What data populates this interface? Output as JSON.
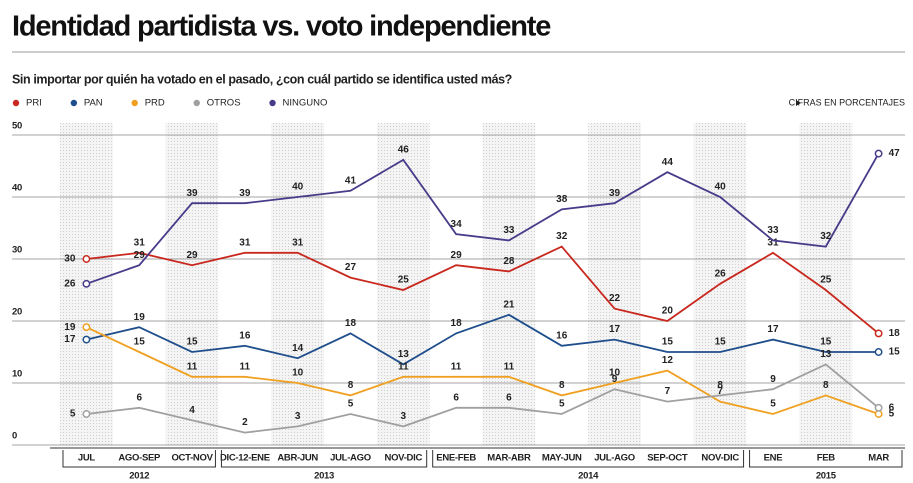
{
  "chart_data": {
    "type": "line",
    "title": "Identidad partidista vs. voto independiente",
    "subtitle": "Sin importar por quién ha votado en el pasado, ¿con cuál partido se identifica usted más?",
    "note": "CIFRAS EN PORCENTAJES",
    "categories": [
      "JUL",
      "AGO-SEP",
      "OCT-NOV",
      "DIC-12-ENE",
      "ABR-JUN",
      "JUL-AGO",
      "NOV-DIC",
      "ENE-FEB",
      "MAR-ABR",
      "MAY-JUN",
      "JUL-AGO",
      "SEP-OCT",
      "NOV-DIC",
      "ENE",
      "FEB",
      "MAR"
    ],
    "year_groups": [
      {
        "label": "2012",
        "count": 3
      },
      {
        "label": "2013",
        "count": 4
      },
      {
        "label": "2014",
        "count": 6
      },
      {
        "label": "2015",
        "count": 3
      }
    ],
    "series": [
      {
        "name": "PRI",
        "color": "#c8281e",
        "values": [
          30,
          31,
          29,
          31,
          31,
          27,
          25,
          29,
          28,
          32,
          22,
          20,
          26,
          31,
          25,
          18
        ]
      },
      {
        "name": "PAN",
        "color": "#1f4e8c",
        "values": [
          17,
          19,
          15,
          16,
          14,
          18,
          13,
          18,
          21,
          16,
          17,
          15,
          15,
          17,
          15,
          15
        ]
      },
      {
        "name": "PRD",
        "color": "#f0a020",
        "values": [
          19,
          15,
          11,
          11,
          10,
          8,
          11,
          11,
          11,
          8,
          10,
          12,
          7,
          5,
          8,
          5
        ]
      },
      {
        "name": "OTROS",
        "color": "#a0a0a0",
        "values": [
          5,
          6,
          4,
          2,
          3,
          5,
          3,
          6,
          6,
          5,
          9,
          7,
          8,
          9,
          13,
          6
        ]
      },
      {
        "name": "NINGUNO",
        "color": "#4a3a8a",
        "values": [
          26,
          29,
          39,
          39,
          40,
          41,
          46,
          34,
          33,
          38,
          39,
          44,
          40,
          33,
          32,
          47
        ]
      }
    ],
    "ylim": [
      0,
      50
    ],
    "yticks": [
      0,
      10,
      20,
      30,
      40,
      50
    ],
    "grid": true
  }
}
